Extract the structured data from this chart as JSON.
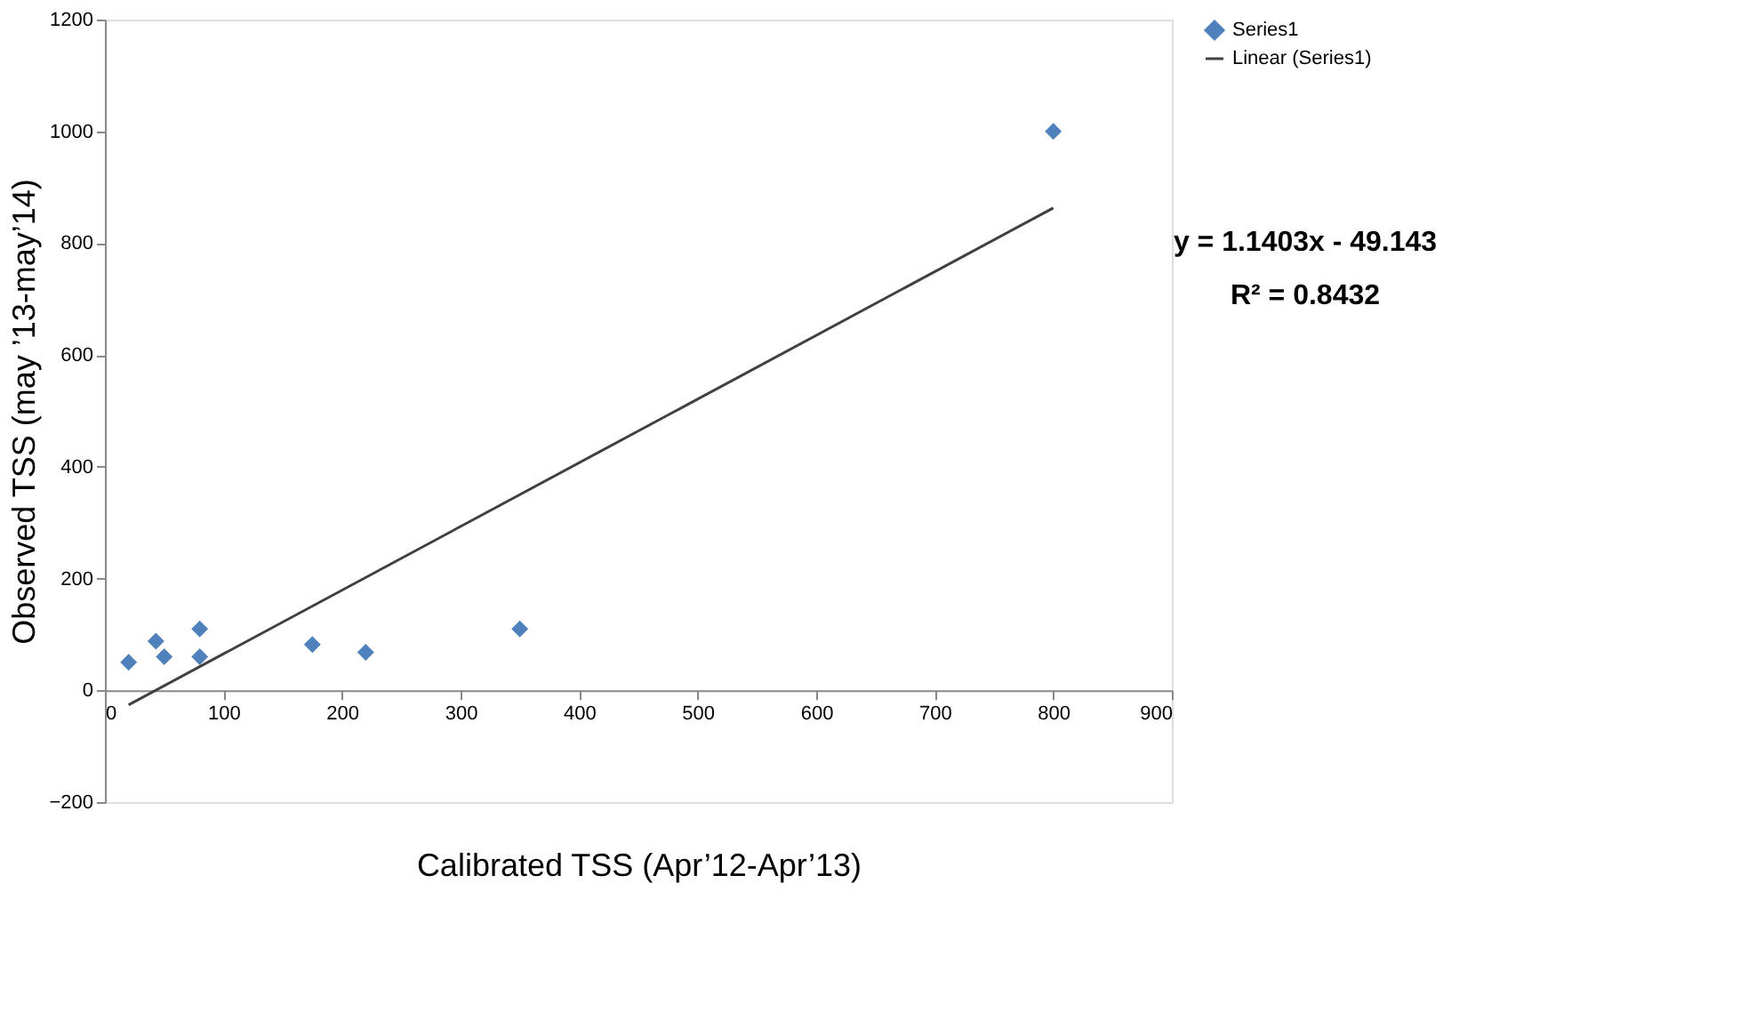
{
  "chart_data": {
    "type": "scatter",
    "xlabel": "Calibrated TSS (Apr’12-Apr’13)",
    "ylabel": "Observed TSS (may ’13-may’14)",
    "annotations": [
      "y = 1.1403x - 49.143",
      "R² = 0.8432"
    ],
    "xlim": [
      0,
      900
    ],
    "xticks": [
      0,
      100,
      200,
      300,
      400,
      500,
      600,
      700,
      800,
      900
    ],
    "ylim": [
      -200,
      1200
    ],
    "yticks": [
      -200,
      0,
      200,
      400,
      600,
      800,
      1000,
      1200
    ],
    "grid": false,
    "legend": "right",
    "series": [
      {
        "name": "Series1",
        "color": "#4f81bd",
        "marker": "diamond",
        "x": [
          20,
          43,
          50,
          80,
          80,
          175,
          220,
          350,
          800
        ],
        "values": [
          50,
          88,
          60,
          110,
          60,
          82,
          68,
          110,
          1000
        ]
      },
      {
        "name": "Linear (Series1)",
        "type": "line",
        "color": "#404040",
        "marker": "none",
        "line_style": "solid",
        "x": [
          20,
          800
        ],
        "values": [
          -26,
          863
        ]
      }
    ]
  }
}
